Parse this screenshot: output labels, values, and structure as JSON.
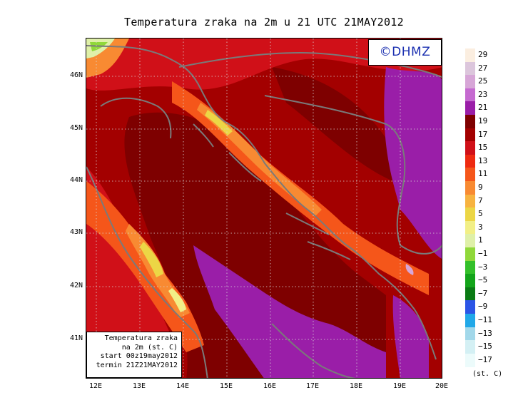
{
  "title": "Temperatura zraka na 2m u 21 UTC 21MAY2012",
  "logo": "©DHMZ",
  "info_box": {
    "line1": "Temperatura zraka",
    "line2": "na 2m (st. C)",
    "line3": "start 00z19may2012",
    "line4": "termin 21Z21MAY2012"
  },
  "latitude_labels": [
    "46N",
    "45N",
    "44N",
    "43N",
    "42N",
    "41N"
  ],
  "longitude_labels": [
    "12E",
    "13E",
    "14E",
    "15E",
    "16E",
    "17E",
    "18E",
    "19E",
    "20E"
  ],
  "legend": {
    "units": "(st. C)",
    "entries": [
      {
        "label": "29",
        "color": "#fbeee0"
      },
      {
        "label": "27",
        "color": "#dcc6dc"
      },
      {
        "label": "25",
        "color": "#d7a6d7"
      },
      {
        "label": "23",
        "color": "#c56ad0"
      },
      {
        "label": "21",
        "color": "#9a1ea8"
      },
      {
        "label": "19",
        "color": "#7e0000"
      },
      {
        "label": "17",
        "color": "#a30000"
      },
      {
        "label": "15",
        "color": "#d01018"
      },
      {
        "label": "13",
        "color": "#ee2a10"
      },
      {
        "label": "11",
        "color": "#f5561a"
      },
      {
        "label": "9",
        "color": "#f88a32"
      },
      {
        "label": "7",
        "color": "#f7b340"
      },
      {
        "label": "5",
        "color": "#ecd645"
      },
      {
        "label": "3",
        "color": "#f2ef86"
      },
      {
        "label": "1",
        "color": "#dff0a8"
      },
      {
        "label": "−1",
        "color": "#90d83a"
      },
      {
        "label": "−3",
        "color": "#33c02a"
      },
      {
        "label": "−5",
        "color": "#13a41a"
      },
      {
        "label": "−7",
        "color": "#0a7a14"
      },
      {
        "label": "−9",
        "color": "#2b55e6"
      },
      {
        "label": "−11",
        "color": "#20a8e8"
      },
      {
        "label": "−13",
        "color": "#a2d8ea"
      },
      {
        "label": "−15",
        "color": "#d4f0f4"
      },
      {
        "label": "−17",
        "color": "#ecfbfb"
      }
    ]
  }
}
